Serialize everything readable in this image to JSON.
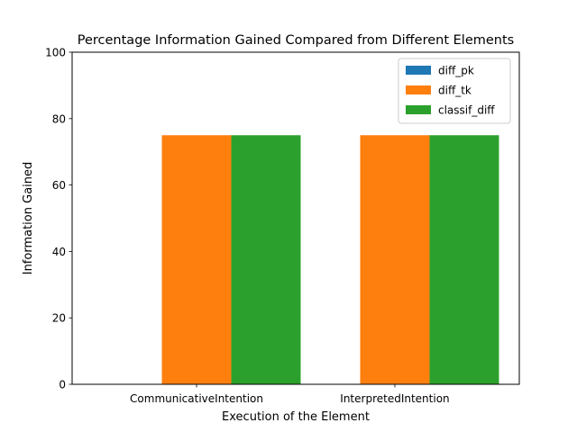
{
  "chart_data": {
    "type": "bar",
    "title": "Percentage Information Gained Compared from Different Elements",
    "xlabel": "Execution of the Element",
    "ylabel": "Information Gained",
    "categories": [
      "CommunicativeIntention",
      "InterpretedIntention"
    ],
    "series": [
      {
        "name": "diff_pk",
        "values": [
          0,
          0
        ],
        "color": "#1f77b4"
      },
      {
        "name": "diff_tk",
        "values": [
          75,
          75
        ],
        "color": "#ff7f0e"
      },
      {
        "name": "classif_diff",
        "values": [
          75,
          75
        ],
        "color": "#2ca02c"
      }
    ],
    "ylim": [
      0,
      100
    ],
    "yticks": [
      0,
      20,
      40,
      60,
      80,
      100
    ],
    "grid": false,
    "legend": "top-right"
  }
}
